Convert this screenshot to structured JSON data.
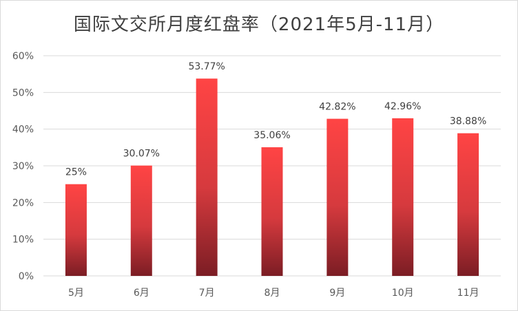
{
  "chart_data": {
    "type": "bar",
    "title": "国际文交所月度红盘率（2021年5月-11月）",
    "categories": [
      "5月",
      "6月",
      "7月",
      "8月",
      "9月",
      "10月",
      "11月"
    ],
    "values": [
      25,
      30.07,
      53.77,
      35.06,
      42.82,
      42.96,
      38.88
    ],
    "data_labels": [
      "25%",
      "30.07%",
      "53.77%",
      "35.06%",
      "42.82%",
      "42.96%",
      "38.88%"
    ],
    "y_ticks": [
      "0%",
      "10%",
      "20%",
      "30%",
      "40%",
      "50%",
      "60%"
    ],
    "ylim": [
      0,
      60
    ],
    "grid": true,
    "legend": "none",
    "bar_gradient": {
      "top": "#ff4444",
      "bottom": "#7b1d24"
    },
    "grid_color": "#d9d9d9"
  }
}
